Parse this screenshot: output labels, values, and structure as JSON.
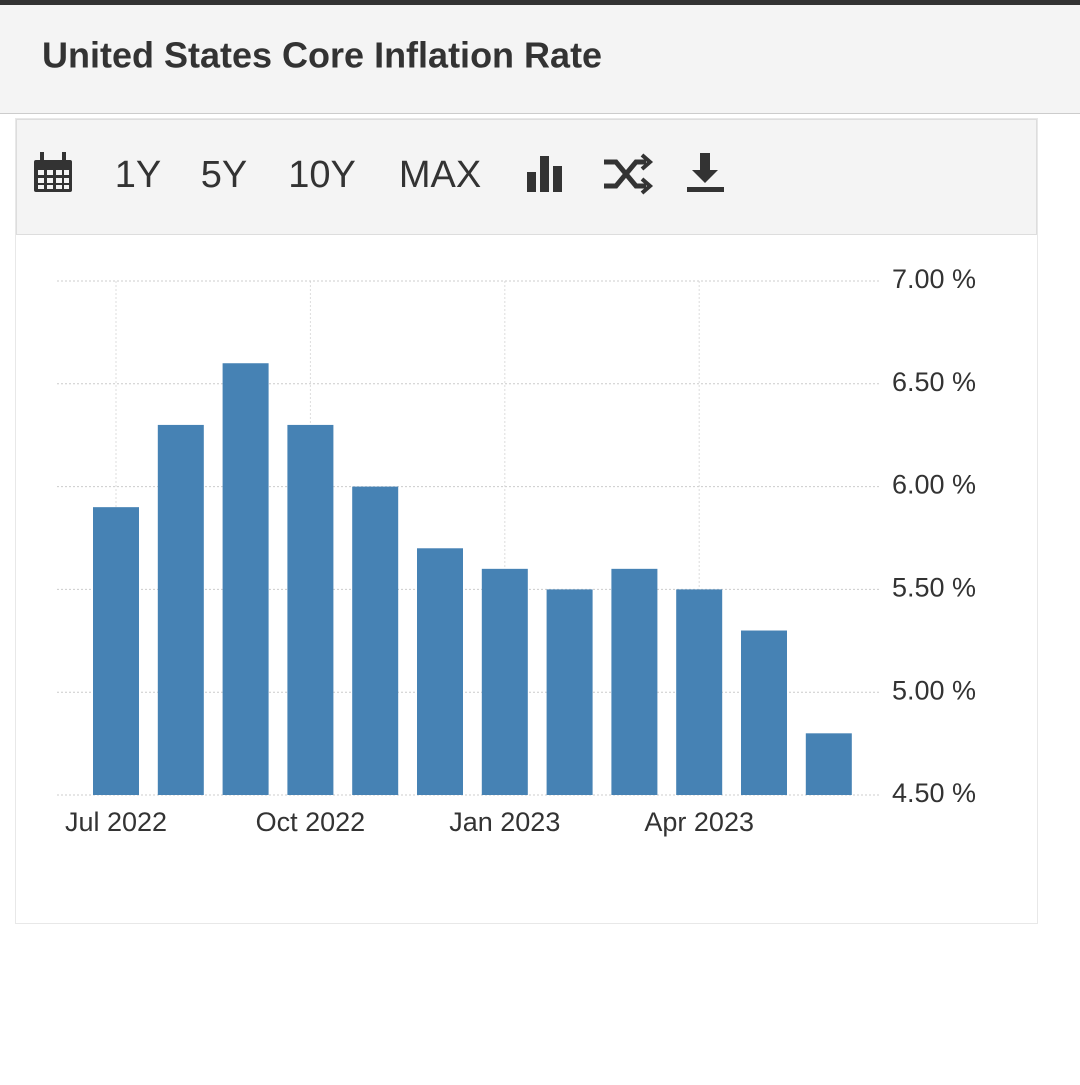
{
  "chart_data": {
    "type": "bar",
    "title": "United States Core Inflation Rate",
    "categories": [
      "Jul 2022",
      null,
      null,
      "Oct 2022",
      null,
      null,
      "Jan 2023",
      null,
      null,
      "Apr 2023",
      null,
      null
    ],
    "values": [
      5.9,
      6.3,
      6.6,
      6.3,
      6.0,
      5.7,
      5.6,
      5.5,
      5.6,
      5.5,
      5.3,
      4.8
    ],
    "color": "#4682b4",
    "ylim": [
      4.5,
      7.0
    ],
    "yticks": [
      {
        "value": 4.5,
        "label": "4.50 %"
      },
      {
        "value": 5.0,
        "label": "5.00 %"
      },
      {
        "value": 5.5,
        "label": "5.50 %"
      },
      {
        "value": 6.0,
        "label": "6.00 %"
      },
      {
        "value": 6.5,
        "label": "6.50 %"
      },
      {
        "value": 7.0,
        "label": "7.00 %"
      }
    ],
    "grid": true
  },
  "toolbar": [
    "1Y",
    "5Y",
    "10Y",
    "MAX"
  ]
}
